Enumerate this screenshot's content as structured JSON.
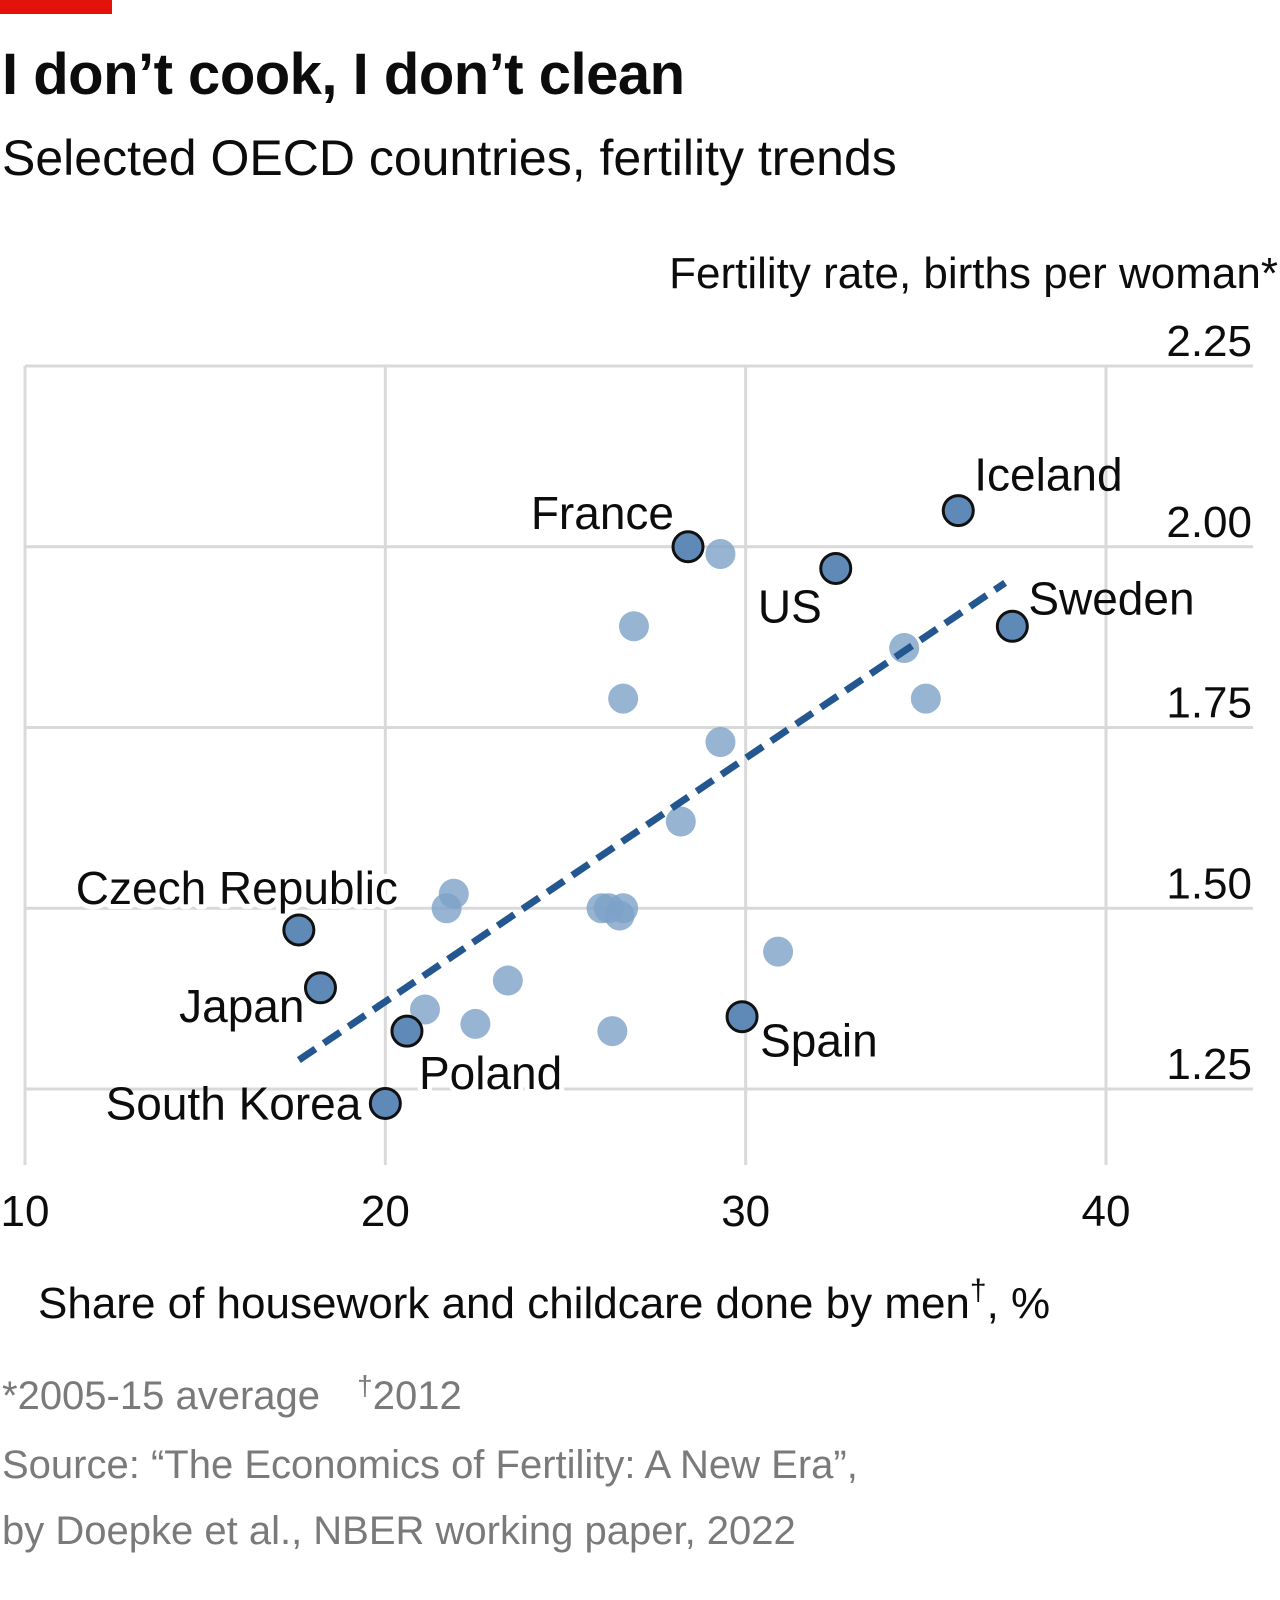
{
  "header": {
    "title": "I don’t cook, I don’t clean",
    "subtitle": "Selected OECD countries, fertility trends"
  },
  "footer": {
    "note_star": "*2005-15 average",
    "note_dagger_mark": "†",
    "note_dagger_text": "2012",
    "source_line1": "Source: “The Economics of Fertility: A New Era”,",
    "source_line2": "by Doepke et al., NBER working paper, 2022"
  },
  "colors": {
    "brand_red": "#e3120b",
    "highlight_point": "#5f8ab8",
    "background_point": "#7da1c8",
    "trend_line": "#24578f",
    "grid": "#d9d9d9"
  },
  "chart_data": {
    "type": "scatter",
    "title": "I don’t cook, I don’t clean",
    "xlabel_text": "Share of housework and childcare done by men",
    "xlabel_mark": "†",
    "xlabel_unit": ", %",
    "ylabel": "Fertility rate, births per woman*",
    "xlim": [
      10,
      43.5
    ],
    "ylim": [
      1.15,
      2.25
    ],
    "x_ticks": [
      "10",
      "20",
      "30",
      "40"
    ],
    "y_ticks": [
      "1.25",
      "1.50",
      "1.75",
      "2.00",
      "2.25"
    ],
    "grid": true,
    "highlighted": [
      {
        "label": "France",
        "x": 28.4,
        "y": 2.0
      },
      {
        "label": "Iceland",
        "x": 35.9,
        "y": 2.05
      },
      {
        "label": "US",
        "x": 32.5,
        "y": 1.97
      },
      {
        "label": "Sweden",
        "x": 37.4,
        "y": 1.89
      },
      {
        "label": "Czech Republic",
        "x": 17.6,
        "y": 1.47
      },
      {
        "label": "Japan",
        "x": 18.2,
        "y": 1.39
      },
      {
        "label": "Poland",
        "x": 20.6,
        "y": 1.33
      },
      {
        "label": "Spain",
        "x": 29.9,
        "y": 1.35
      },
      {
        "label": "South Korea",
        "x": 20.0,
        "y": 1.23
      }
    ],
    "others": [
      {
        "x": 29.3,
        "y": 1.99
      },
      {
        "x": 26.9,
        "y": 1.89
      },
      {
        "x": 26.6,
        "y": 1.79
      },
      {
        "x": 29.3,
        "y": 1.73
      },
      {
        "x": 34.4,
        "y": 1.86
      },
      {
        "x": 35.0,
        "y": 1.79
      },
      {
        "x": 28.2,
        "y": 1.62
      },
      {
        "x": 21.9,
        "y": 1.52
      },
      {
        "x": 21.7,
        "y": 1.5
      },
      {
        "x": 26.0,
        "y": 1.5
      },
      {
        "x": 26.2,
        "y": 1.5
      },
      {
        "x": 26.6,
        "y": 1.5
      },
      {
        "x": 26.5,
        "y": 1.49
      },
      {
        "x": 30.9,
        "y": 1.44
      },
      {
        "x": 23.4,
        "y": 1.4
      },
      {
        "x": 21.1,
        "y": 1.36
      },
      {
        "x": 22.5,
        "y": 1.34
      },
      {
        "x": 26.3,
        "y": 1.33
      }
    ],
    "trend_line": {
      "x": [
        17.6,
        37.2
      ],
      "y": [
        1.29,
        1.95
      ]
    }
  }
}
